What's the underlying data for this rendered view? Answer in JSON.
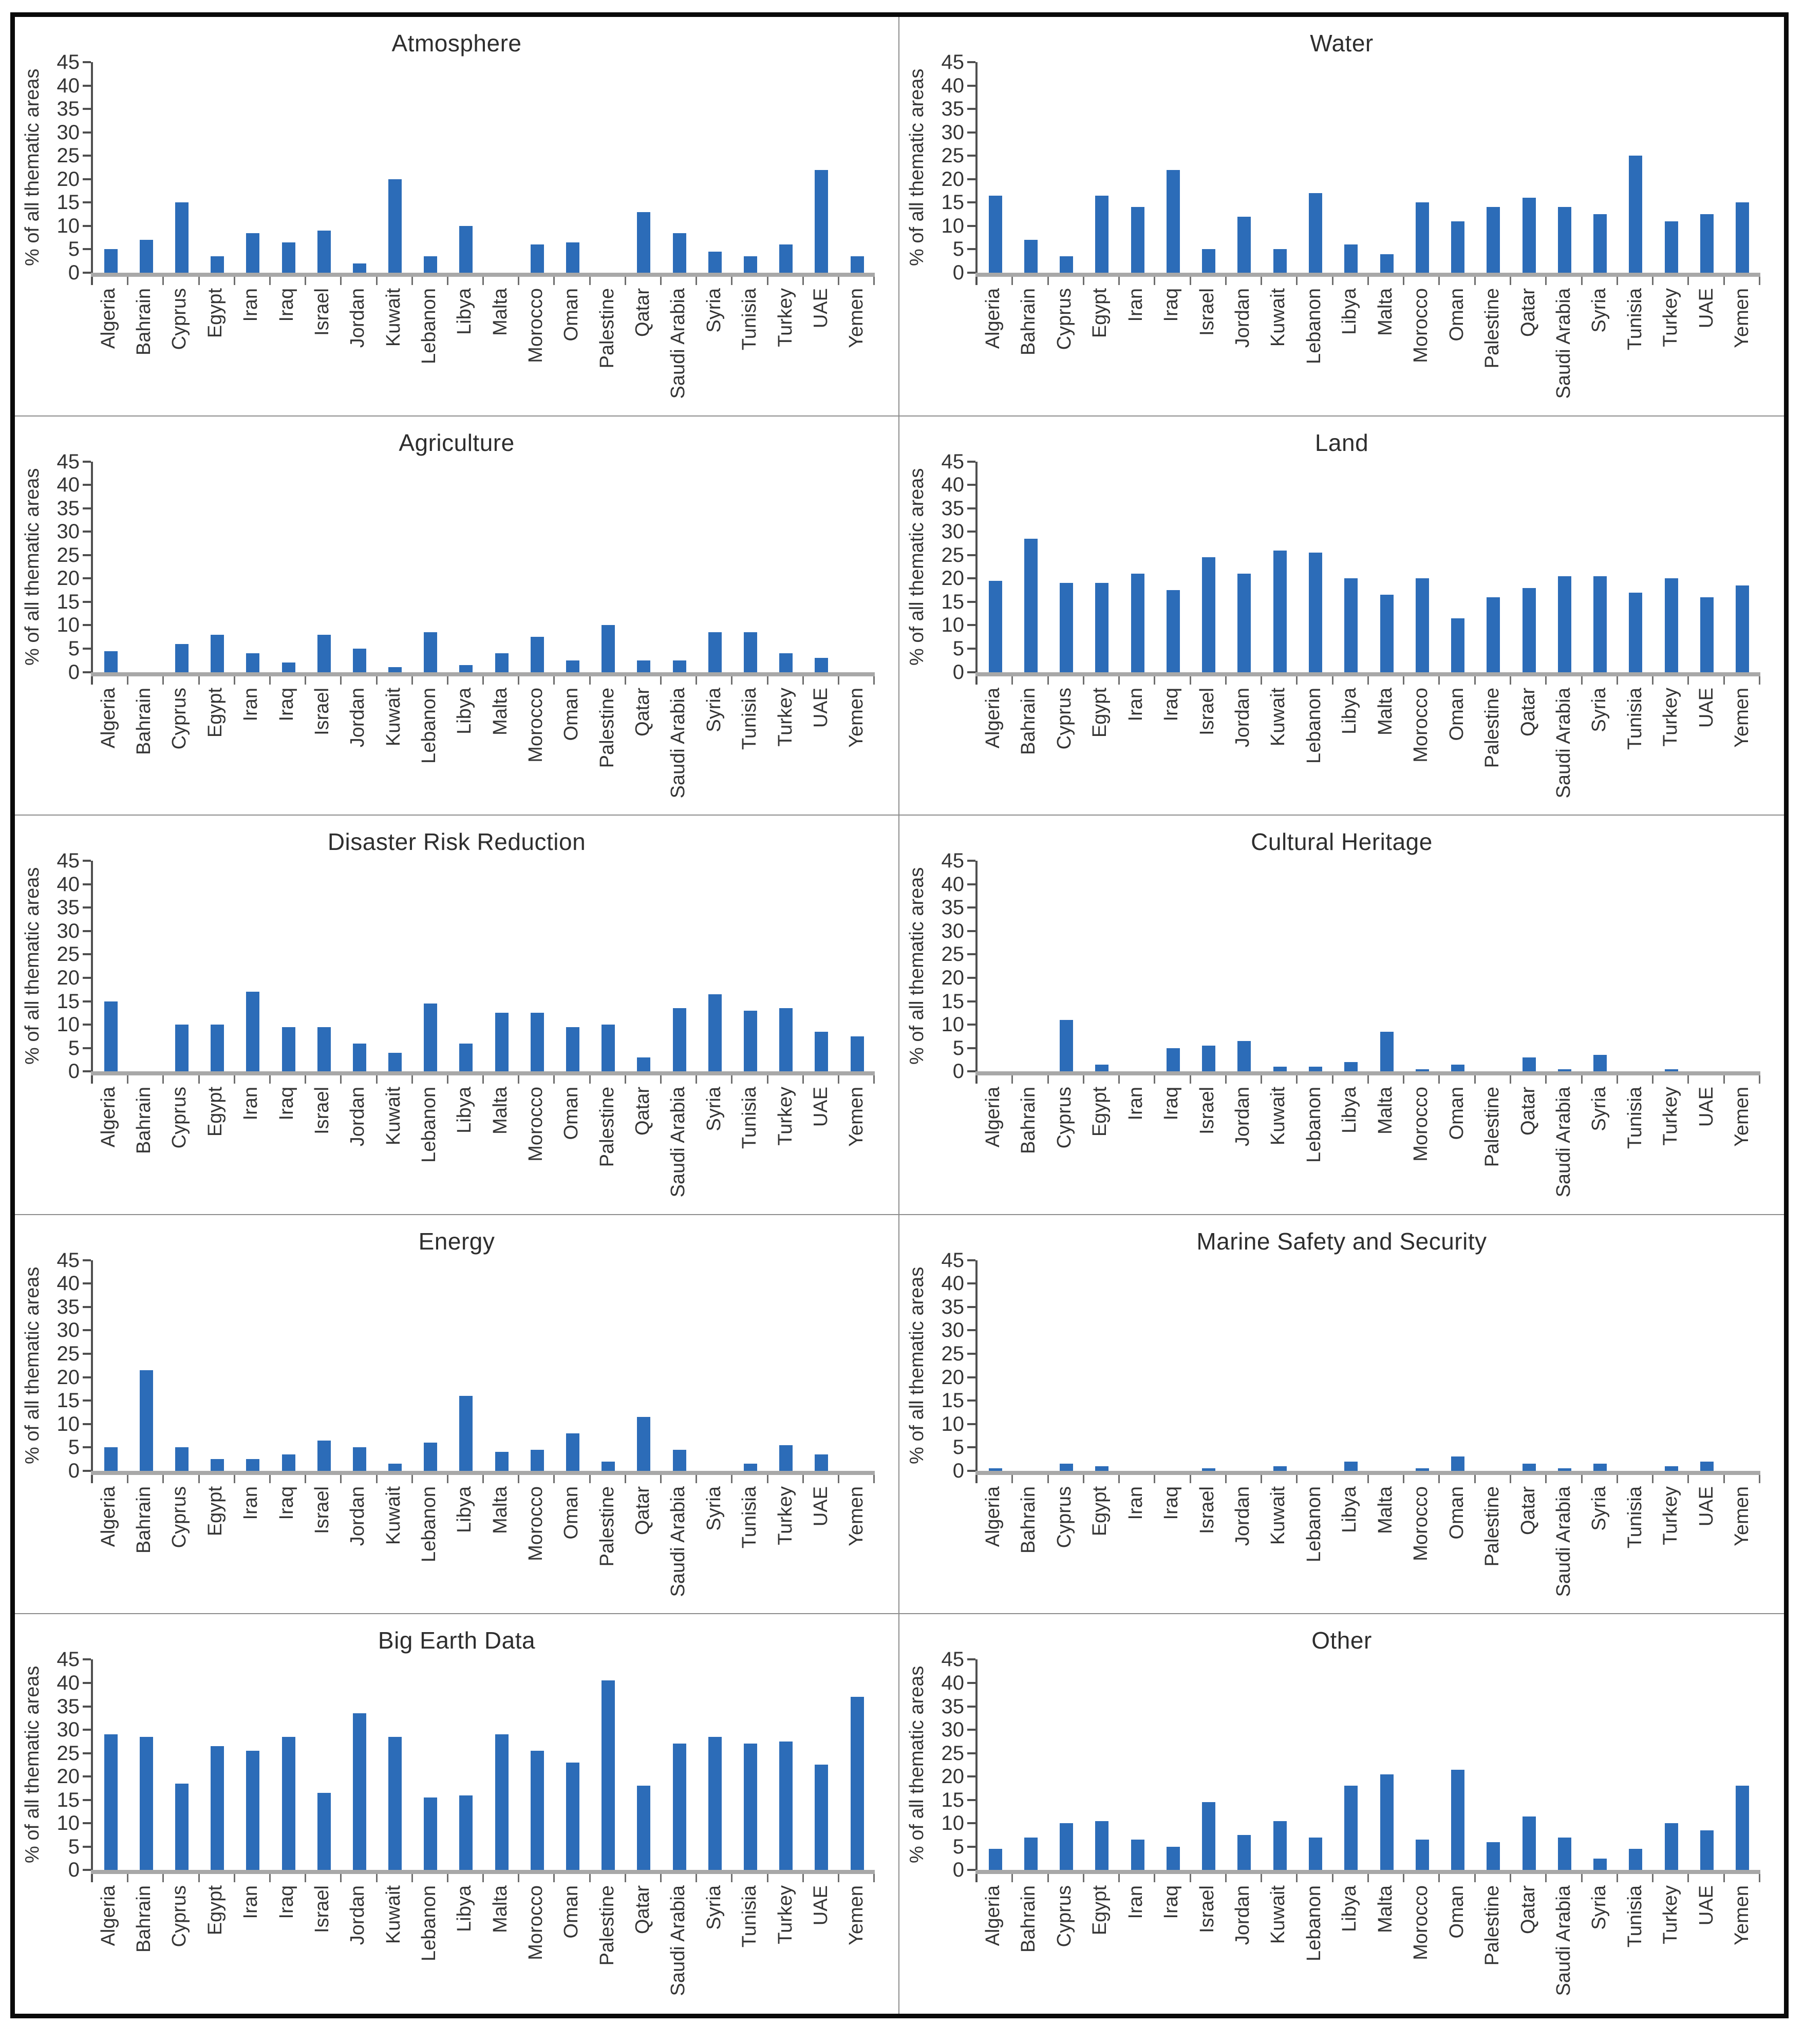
{
  "page": {
    "background": "#ffffff",
    "frame_color": "#0a0a0a",
    "divider_color": "#8c8c8c"
  },
  "style": {
    "bar_color": "#2c6cb8",
    "axis_line_color": "#4f4f4f",
    "baseline_color": "#a8a8a8",
    "text_color": "#353535"
  },
  "chart_data": [
    {
      "type": "bar",
      "title": "Atmosphere",
      "ylabel": "% of all thematic areas",
      "ylim": [
        0,
        45
      ],
      "ytick_step": 5,
      "yticks": [
        0,
        5,
        10,
        15,
        20,
        25,
        30,
        35,
        40,
        45
      ],
      "grid": false,
      "legend": "none",
      "categories": [
        "Algeria",
        "Bahrain",
        "Cyprus",
        "Egypt",
        "Iran",
        "Iraq",
        "Israel",
        "Jordan",
        "Kuwait",
        "Lebanon",
        "Libya",
        "Malta",
        "Morocco",
        "Oman",
        "Palestine",
        "Qatar",
        "Saudi Arabia",
        "Syria",
        "Tunisia",
        "Turkey",
        "UAE",
        "Yemen"
      ],
      "values": [
        5,
        7,
        15,
        3.5,
        8.5,
        6.5,
        9,
        2,
        20,
        3.5,
        10,
        0,
        6,
        6.5,
        0,
        13,
        8.5,
        4.5,
        3.5,
        6,
        22,
        3.5
      ]
    },
    {
      "type": "bar",
      "title": "Water",
      "ylabel": "% of all thematic areas",
      "ylim": [
        0,
        45
      ],
      "ytick_step": 5,
      "yticks": [
        0,
        5,
        10,
        15,
        20,
        25,
        30,
        35,
        40,
        45
      ],
      "grid": false,
      "legend": "none",
      "categories": [
        "Algeria",
        "Bahrain",
        "Cyprus",
        "Egypt",
        "Iran",
        "Iraq",
        "Israel",
        "Jordan",
        "Kuwait",
        "Lebanon",
        "Libya",
        "Malta",
        "Morocco",
        "Oman",
        "Palestine",
        "Qatar",
        "Saudi Arabia",
        "Syria",
        "Tunisia",
        "Turkey",
        "UAE",
        "Yemen"
      ],
      "values": [
        16.5,
        7,
        3.5,
        16.5,
        14,
        22,
        5,
        12,
        5,
        17,
        6,
        4,
        15,
        11,
        14,
        16,
        14,
        12.5,
        25,
        11,
        12.5,
        15
      ]
    },
    {
      "type": "bar",
      "title": "Agriculture",
      "ylabel": "% of all thematic areas",
      "ylim": [
        0,
        45
      ],
      "ytick_step": 5,
      "yticks": [
        0,
        5,
        10,
        15,
        20,
        25,
        30,
        35,
        40,
        45
      ],
      "grid": false,
      "legend": "none",
      "categories": [
        "Algeria",
        "Bahrain",
        "Cyprus",
        "Egypt",
        "Iran",
        "Iraq",
        "Israel",
        "Jordan",
        "Kuwait",
        "Lebanon",
        "Libya",
        "Malta",
        "Morocco",
        "Oman",
        "Palestine",
        "Qatar",
        "Saudi Arabia",
        "Syria",
        "Tunisia",
        "Turkey",
        "UAE",
        "Yemen"
      ],
      "values": [
        4.5,
        0,
        6,
        8,
        4,
        2,
        8,
        5,
        1,
        8.5,
        1.5,
        4,
        7.5,
        2.5,
        10,
        2.5,
        2.5,
        8.5,
        8.5,
        4,
        3,
        0
      ]
    },
    {
      "type": "bar",
      "title": "Land",
      "ylabel": "% of all thematic areas",
      "ylim": [
        0,
        45
      ],
      "ytick_step": 5,
      "yticks": [
        0,
        5,
        10,
        15,
        20,
        25,
        30,
        35,
        40,
        45
      ],
      "grid": false,
      "legend": "none",
      "categories": [
        "Algeria",
        "Bahrain",
        "Cyprus",
        "Egypt",
        "Iran",
        "Iraq",
        "Israel",
        "Jordan",
        "Kuwait",
        "Lebanon",
        "Libya",
        "Malta",
        "Morocco",
        "Oman",
        "Palestine",
        "Qatar",
        "Saudi Arabia",
        "Syria",
        "Tunisia",
        "Turkey",
        "UAE",
        "Yemen"
      ],
      "values": [
        19.5,
        28.5,
        19,
        19,
        21,
        17.5,
        24.5,
        21,
        26,
        25.5,
        20,
        16.5,
        20,
        11.5,
        16,
        18,
        20.5,
        20.5,
        17,
        20,
        16,
        18.5
      ]
    },
    {
      "type": "bar",
      "title": "Disaster Risk Reduction",
      "ylabel": "% of all thematic areas",
      "ylim": [
        0,
        45
      ],
      "ytick_step": 5,
      "yticks": [
        0,
        5,
        10,
        15,
        20,
        25,
        30,
        35,
        40,
        45
      ],
      "grid": false,
      "legend": "none",
      "categories": [
        "Algeria",
        "Bahrain",
        "Cyprus",
        "Egypt",
        "Iran",
        "Iraq",
        "Israel",
        "Jordan",
        "Kuwait",
        "Lebanon",
        "Libya",
        "Malta",
        "Morocco",
        "Oman",
        "Palestine",
        "Qatar",
        "Saudi Arabia",
        "Syria",
        "Tunisia",
        "Turkey",
        "UAE",
        "Yemen"
      ],
      "values": [
        15,
        0,
        10,
        10,
        17,
        9.5,
        9.5,
        6,
        4,
        14.5,
        6,
        12.5,
        12.5,
        9.5,
        10,
        3,
        13.5,
        16.5,
        13,
        13.5,
        8.5,
        7.5
      ]
    },
    {
      "type": "bar",
      "title": "Cultural Heritage",
      "ylabel": "% of all thematic areas",
      "ylim": [
        0,
        45
      ],
      "ytick_step": 5,
      "yticks": [
        0,
        5,
        10,
        15,
        20,
        25,
        30,
        35,
        40,
        45
      ],
      "grid": false,
      "legend": "none",
      "categories": [
        "Algeria",
        "Bahrain",
        "Cyprus",
        "Egypt",
        "Iran",
        "Iraq",
        "Israel",
        "Jordan",
        "Kuwait",
        "Lebanon",
        "Libya",
        "Malta",
        "Morocco",
        "Oman",
        "Palestine",
        "Qatar",
        "Saudi Arabia",
        "Syria",
        "Tunisia",
        "Turkey",
        "UAE",
        "Yemen"
      ],
      "values": [
        0,
        0,
        11,
        1.5,
        0,
        5,
        5.5,
        6.5,
        1,
        1,
        2,
        8.5,
        0.5,
        1.5,
        0,
        3,
        0.5,
        3.5,
        0,
        0.5,
        0,
        0
      ]
    },
    {
      "type": "bar",
      "title": "Energy",
      "ylabel": "% of all thematic areas",
      "ylim": [
        0,
        45
      ],
      "ytick_step": 5,
      "yticks": [
        0,
        5,
        10,
        15,
        20,
        25,
        30,
        35,
        40,
        45
      ],
      "grid": false,
      "legend": "none",
      "categories": [
        "Algeria",
        "Bahrain",
        "Cyprus",
        "Egypt",
        "Iran",
        "Iraq",
        "Israel",
        "Jordan",
        "Kuwait",
        "Lebanon",
        "Libya",
        "Malta",
        "Morocco",
        "Oman",
        "Palestine",
        "Qatar",
        "Saudi Arabia",
        "Syria",
        "Tunisia",
        "Turkey",
        "UAE",
        "Yemen"
      ],
      "values": [
        5,
        21.5,
        5,
        2.5,
        2.5,
        3.5,
        6.5,
        5,
        1.5,
        6,
        16,
        4,
        4.5,
        8,
        2,
        11.5,
        4.5,
        0,
        1.5,
        5.5,
        3.5,
        0
      ]
    },
    {
      "type": "bar",
      "title": "Marine Safety and Security",
      "ylabel": "% of all thematic areas",
      "ylim": [
        0,
        45
      ],
      "ytick_step": 5,
      "yticks": [
        0,
        5,
        10,
        15,
        20,
        25,
        30,
        35,
        40,
        45
      ],
      "grid": false,
      "legend": "none",
      "categories": [
        "Algeria",
        "Bahrain",
        "Cyprus",
        "Egypt",
        "Iran",
        "Iraq",
        "Israel",
        "Jordan",
        "Kuwait",
        "Lebanon",
        "Libya",
        "Malta",
        "Morocco",
        "Oman",
        "Palestine",
        "Qatar",
        "Saudi Arabia",
        "Syria",
        "Tunisia",
        "Turkey",
        "UAE",
        "Yemen"
      ],
      "values": [
        0.5,
        0,
        1.5,
        1,
        0,
        0,
        0.5,
        0,
        1,
        0,
        2,
        0,
        0.5,
        3,
        0,
        1.5,
        0.5,
        1.5,
        0,
        1,
        2,
        0
      ]
    },
    {
      "type": "bar",
      "title": "Big Earth Data",
      "ylabel": "% of all thematic areas",
      "ylim": [
        0,
        45
      ],
      "ytick_step": 5,
      "yticks": [
        0,
        5,
        10,
        15,
        20,
        25,
        30,
        35,
        40,
        45
      ],
      "grid": false,
      "legend": "none",
      "categories": [
        "Algeria",
        "Bahrain",
        "Cyprus",
        "Egypt",
        "Iran",
        "Iraq",
        "Israel",
        "Jordan",
        "Kuwait",
        "Lebanon",
        "Libya",
        "Malta",
        "Morocco",
        "Oman",
        "Palestine",
        "Qatar",
        "Saudi Arabia",
        "Syria",
        "Tunisia",
        "Turkey",
        "UAE",
        "Yemen"
      ],
      "values": [
        29,
        28.5,
        18.5,
        26.5,
        25.5,
        28.5,
        16.5,
        33.5,
        28.5,
        15.5,
        16,
        29,
        25.5,
        23,
        40.5,
        18,
        27,
        28.5,
        27,
        27.5,
        22.5,
        37
      ]
    },
    {
      "type": "bar",
      "title": "Other",
      "ylabel": "% of all thematic areas",
      "ylim": [
        0,
        45
      ],
      "ytick_step": 5,
      "yticks": [
        0,
        5,
        10,
        15,
        20,
        25,
        30,
        35,
        40,
        45
      ],
      "grid": false,
      "legend": "none",
      "categories": [
        "Algeria",
        "Bahrain",
        "Cyprus",
        "Egypt",
        "Iran",
        "Iraq",
        "Israel",
        "Jordan",
        "Kuwait",
        "Lebanon",
        "Libya",
        "Malta",
        "Morocco",
        "Oman",
        "Palestine",
        "Qatar",
        "Saudi Arabia",
        "Syria",
        "Tunisia",
        "Turkey",
        "UAE",
        "Yemen"
      ],
      "values": [
        4.5,
        7,
        10,
        10.5,
        6.5,
        5,
        14.5,
        7.5,
        10.5,
        7,
        18,
        20.5,
        6.5,
        21.5,
        6,
        11.5,
        7,
        2.5,
        4.5,
        10,
        8.5,
        18
      ]
    }
  ]
}
